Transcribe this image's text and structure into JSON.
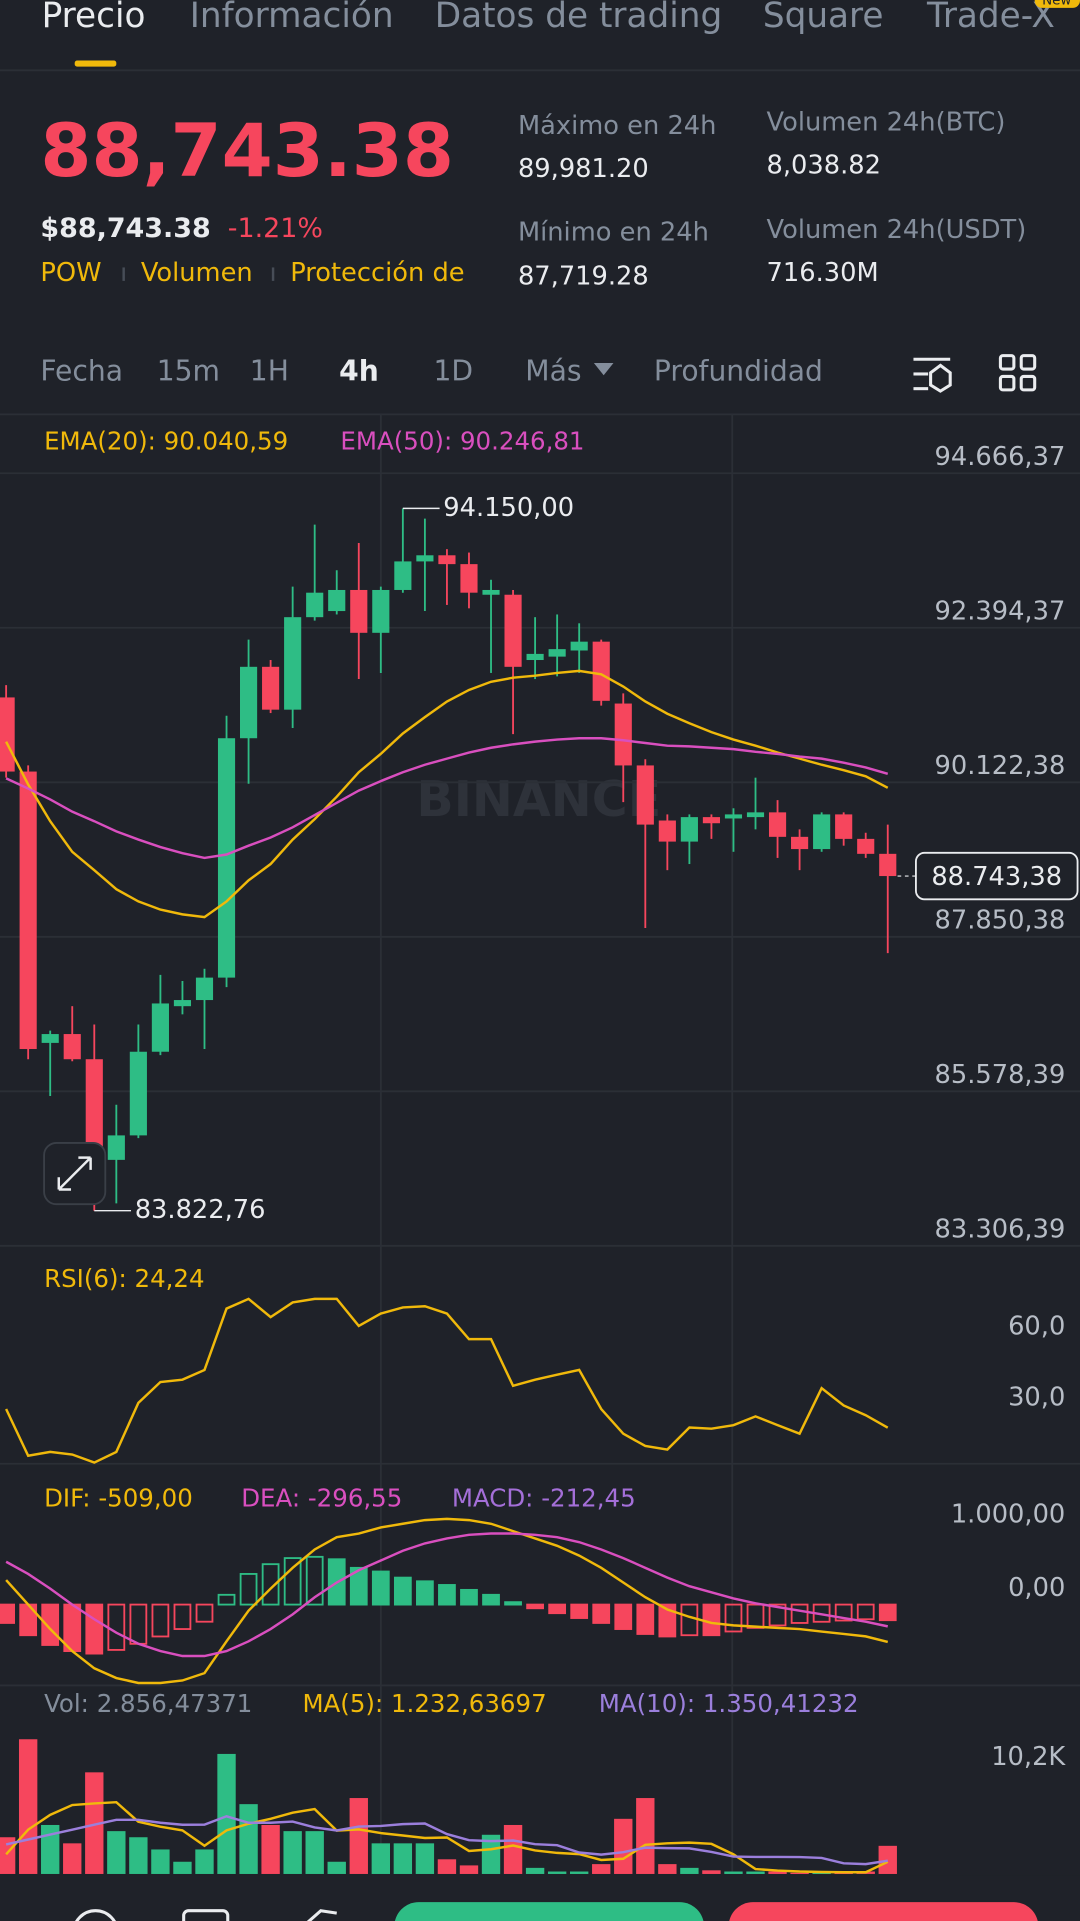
{
  "tabs": [
    "Precio",
    "Información",
    "Datos de trading",
    "Square",
    "Trade-X"
  ],
  "badge": "New",
  "price": {
    "last": "88,743.38",
    "usd": "$88,743.38",
    "change": "-1.21%",
    "tags": [
      "POW",
      "Volumen",
      "Protección de"
    ]
  },
  "stats": [
    {
      "label": "Máximo en 24h",
      "value": "89,981.20"
    },
    {
      "label": "Mínimo en 24h",
      "value": "87,719.28"
    },
    {
      "label": "Volumen 24h(BTC)",
      "value": "8,038.82"
    },
    {
      "label": "Volumen 24h(USDT)",
      "value": "716.30M"
    }
  ],
  "timeframes": [
    "Fecha",
    "15m",
    "1H",
    "4h",
    "1D",
    "Más",
    "Profundidad"
  ],
  "watermark": "BINANCE",
  "chart_data": [
    {
      "type": "candlestick",
      "up_color": "#2ebd85",
      "down_color": "#f6465d",
      "grid": true,
      "ylim": [
        83306.39,
        95550
      ],
      "yticks": [
        {
          "value": 94666.37,
          "label": "94.666,37"
        },
        {
          "value": 92394.37,
          "label": "92.394,37"
        },
        {
          "value": 90122.38,
          "label": "90.122,38"
        },
        {
          "value": 87850.38,
          "label": "87.850,38"
        },
        {
          "value": 85578.39,
          "label": "85.578,39"
        },
        {
          "value": 83306.39,
          "label": "83.306,39"
        }
      ],
      "open": [
        91370,
        90280,
        86290,
        86420,
        86050,
        84570,
        84930,
        86160,
        86830,
        86920,
        87250,
        90770,
        91820,
        91190,
        92550,
        92640,
        92950,
        92320,
        92950,
        93370,
        93460,
        93330,
        92880,
        92880,
        91920,
        91970,
        92060,
        92190,
        91280,
        90370,
        89560,
        89250,
        89610,
        89590,
        89610,
        89680,
        89320,
        89140,
        89650,
        89290,
        89070
      ],
      "high": [
        91550,
        90370,
        86470,
        86830,
        86560,
        85380,
        86560,
        87290,
        87200,
        87380,
        91100,
        92220,
        91920,
        93000,
        93910,
        93240,
        93640,
        93000,
        94150,
        94000,
        93550,
        93500,
        93100,
        92950,
        92550,
        92590,
        92460,
        92220,
        91430,
        90460,
        89650,
        89650,
        89650,
        89740,
        90190,
        89860,
        89430,
        89680,
        89680,
        89380,
        89500
      ],
      "low": [
        90190,
        86050,
        85510,
        86020,
        83822.76,
        83930,
        84890,
        86110,
        86710,
        86200,
        87110,
        90100,
        91140,
        90920,
        92500,
        92590,
        91640,
        91730,
        92910,
        92640,
        92730,
        92680,
        91730,
        90830,
        91640,
        91680,
        91730,
        91250,
        89830,
        87980,
        88830,
        88920,
        89290,
        89100,
        89430,
        89010,
        88830,
        89100,
        89190,
        89010,
        87610
      ],
      "close": [
        90280,
        86200,
        86420,
        86050,
        84570,
        84930,
        86160,
        86870,
        86920,
        87250,
        90770,
        91820,
        91190,
        92550,
        92910,
        92950,
        92320,
        92950,
        93370,
        93460,
        93330,
        92910,
        92950,
        91820,
        92010,
        92080,
        92190,
        91320,
        90370,
        89500,
        89250,
        89610,
        89520,
        89650,
        89680,
        89320,
        89140,
        89650,
        89290,
        89070,
        88743.38
      ],
      "series": [
        {
          "name": "EMA(20): 90.040,59",
          "color": "#f0b90b",
          "values": [
            90720,
            90090,
            89550,
            89100,
            88830,
            88550,
            88370,
            88250,
            88180,
            88140,
            88370,
            88680,
            88920,
            89280,
            89580,
            89910,
            90270,
            90540,
            90840,
            91080,
            91310,
            91480,
            91600,
            91660,
            91690,
            91730,
            91760,
            91710,
            91530,
            91310,
            91130,
            90990,
            90860,
            90750,
            90660,
            90560,
            90470,
            90380,
            90300,
            90210,
            90040.59
          ]
        },
        {
          "name": "EMA(50): 90.246,81",
          "color": "#d94fbf",
          "values": [
            90180,
            90030,
            89870,
            89690,
            89550,
            89400,
            89280,
            89170,
            89080,
            89010,
            89060,
            89190,
            89310,
            89460,
            89640,
            89820,
            90000,
            90140,
            90270,
            90380,
            90470,
            90560,
            90630,
            90680,
            90720,
            90750,
            90770,
            90770,
            90740,
            90700,
            90660,
            90650,
            90630,
            90610,
            90570,
            90540,
            90500,
            90470,
            90410,
            90340,
            90246.81
          ]
        }
      ],
      "annotations": {
        "high": {
          "value": 94150,
          "label": "94.150,00"
        },
        "low": {
          "value": 83822.76,
          "label": "83.822,76"
        }
      },
      "last_price": {
        "value": 88743.38,
        "label": "88.743,38"
      }
    },
    {
      "type": "line",
      "grid": false,
      "ylim": [
        9,
        101
      ],
      "yticks": [
        {
          "value": 60,
          "label": "60,0"
        },
        {
          "value": 30,
          "label": "30,0"
        }
      ],
      "series": [
        {
          "name": "RSI(6): 24,24",
          "color": "#f0b90b",
          "values": [
            32.1,
            12.4,
            14,
            12.9,
            9.5,
            14,
            34.7,
            43.5,
            44.5,
            48.6,
            74.5,
            78.6,
            70.9,
            77.1,
            78.6,
            78.6,
            67.2,
            72.4,
            75,
            75.5,
            72.4,
            61.6,
            61.6,
            41.9,
            44.5,
            46.6,
            48.6,
            32.1,
            21.7,
            16.5,
            15,
            24.3,
            23.8,
            25.3,
            29,
            25.3,
            21.7,
            40.9,
            33.6,
            29.5,
            24.24
          ]
        }
      ]
    },
    {
      "type": "macd",
      "grid": false,
      "up_color": "#2ebd85",
      "down_color": "#f6465d",
      "ylim": [
        -1100,
        1900
      ],
      "yticks": [
        {
          "value": 1000,
          "label": "1.000,00"
        },
        {
          "value": 0,
          "label": "0,00"
        }
      ],
      "series": [
        {
          "name": "DIF: -509,00",
          "color": "#f0b90b",
          "type": "line",
          "values": [
            333,
            0,
            -333,
            -633,
            -867,
            -1000,
            -1067,
            -1067,
            -1033,
            -933,
            -500,
            -83,
            217,
            500,
            750,
            917,
            967,
            1050,
            1100,
            1150,
            1167,
            1150,
            1100,
            1000,
            900,
            800,
            667,
            500,
            300,
            100,
            -67,
            -167,
            -250,
            -283,
            -300,
            -317,
            -333,
            -367,
            -400,
            -433,
            -509
          ]
        },
        {
          "name": "DEA: -296,55",
          "color": "#d94fbf",
          "type": "line",
          "values": [
            583,
            417,
            217,
            0,
            -200,
            -383,
            -533,
            -633,
            -700,
            -700,
            -633,
            -500,
            -333,
            -133,
            100,
            300,
            467,
            600,
            733,
            833,
            900,
            950,
            967,
            967,
            950,
            917,
            850,
            750,
            633,
            500,
            367,
            250,
            167,
            83,
            17,
            -33,
            -83,
            -133,
            -183,
            -233,
            -296.55
          ]
        },
        {
          "name": "MACD: -212,45",
          "color": "#a46fd8",
          "type": "bar",
          "values": [
            -250,
            -417,
            -550,
            -633,
            -667,
            -617,
            -534,
            -434,
            -333,
            -233,
            133,
            417,
            550,
            633,
            650,
            617,
            500,
            450,
            367,
            317,
            267,
            200,
            133,
            33,
            -50,
            -117,
            -183,
            -250,
            -333,
            -400,
            -434,
            -417,
            -417,
            -366,
            -317,
            -284,
            -250,
            -234,
            -217,
            -200,
            -212.45
          ]
        }
      ]
    },
    {
      "type": "volume",
      "grid": false,
      "ylim": [
        0,
        18900
      ],
      "yticks": [
        {
          "value": 10200,
          "label": "10,2K"
        }
      ],
      "series": [
        {
          "name": "Vol: 2.856,47371",
          "color": "#848e9c",
          "type": "bar",
          "values": [
            3730,
            13680,
            4975,
            3110,
            10320,
            4350,
            3730,
            2490,
            1240,
            2490,
            12190,
            7090,
            4975,
            4350,
            4350,
            1240,
            7710,
            3110,
            3110,
            3110,
            1490,
            870,
            3980,
            4975,
            620,
            250,
            250,
            1000,
            5600,
            7710,
            1000,
            620,
            370,
            250,
            250,
            250,
            120,
            120,
            120,
            250,
            2856.47371
          ]
        },
        {
          "name": "MA(5): 1.232,63697",
          "color": "#f0b90b",
          "type": "line",
          "values": [
            2000,
            4500,
            6000,
            7000,
            7163,
            7287,
            5297,
            4800,
            4426,
            2860,
            4428,
            5100,
            5597,
            6219,
            6591,
            4401,
            4525,
            4152,
            3904,
            3656,
            3706,
            2338,
            2512,
            2885,
            2387,
            2139,
            2015,
            1419,
            1544,
            2962,
            3112,
            3186,
            3060,
            1990,
            498,
            348,
            248,
            198,
            172,
            172,
            1232.63697
          ]
        },
        {
          "name": "MA(10): 1.350,41232",
          "color": "#9b7fdc",
          "type": "line",
          "values": [
            3000,
            3500,
            4000,
            4500,
            5000,
            5500,
            5500,
            5200,
            5000,
            5012,
            5858,
            5199,
            5199,
            5323,
            4726,
            4415,
            4813,
            4875,
            5062,
            5124,
            4054,
            3432,
            3332,
            3395,
            3022,
            2923,
            2177,
            1966,
            2215,
            2675,
            2626,
            2601,
            2240,
            1767,
            1730,
            1730,
            1717,
            1629,
            1081,
            1000,
            1350.41232
          ]
        }
      ]
    }
  ]
}
